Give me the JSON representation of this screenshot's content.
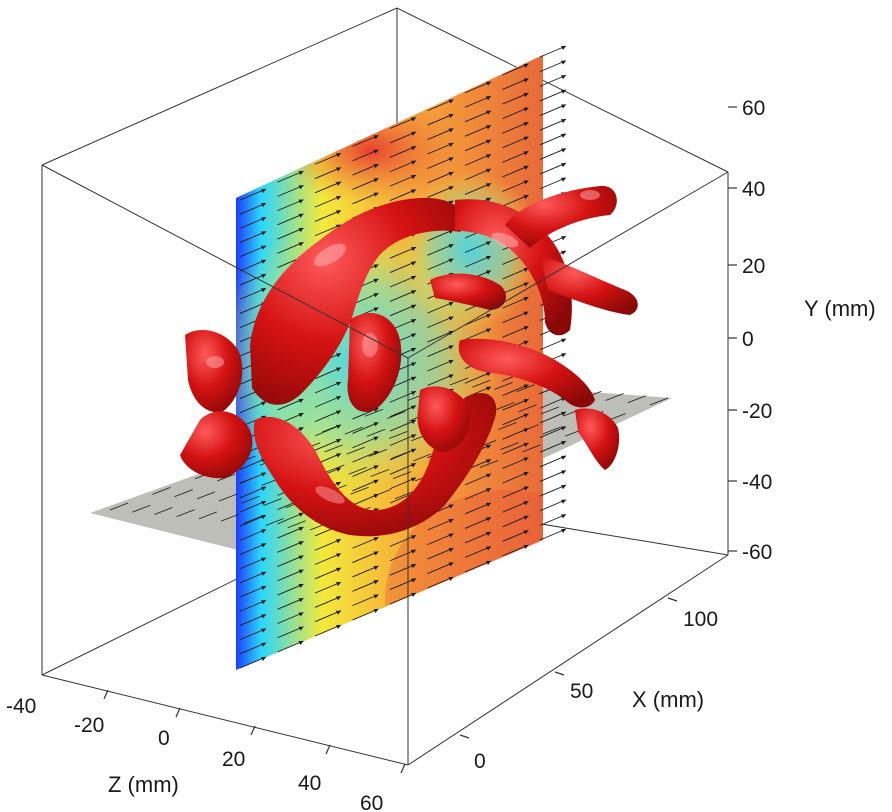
{
  "chart_data": {
    "type": "3d-volume",
    "axes": {
      "x": {
        "label": "X (mm)",
        "ticks": [
          "0",
          "50",
          "100"
        ],
        "range": [
          -10,
          125
        ]
      },
      "y": {
        "label": "Y (mm)",
        "ticks": [
          "60",
          "40",
          "20",
          "0",
          "-20",
          "-40",
          "-60"
        ],
        "range": [
          -65,
          70
        ]
      },
      "z": {
        "label": "Z (mm)",
        "ticks": [
          "-40",
          "-20",
          "0",
          "20",
          "40",
          "60"
        ],
        "range": [
          -40,
          60
        ]
      }
    },
    "colors": {
      "vessel": "#d11010",
      "vessel_highlight": "#ff6a6a",
      "plane_gray": "#a8a8a0",
      "arrow": "#1a1a1a",
      "colormap": [
        "#1e3cff",
        "#2ad6ff",
        "#f4e93a",
        "#f6a43a",
        "#e8503a"
      ]
    }
  }
}
